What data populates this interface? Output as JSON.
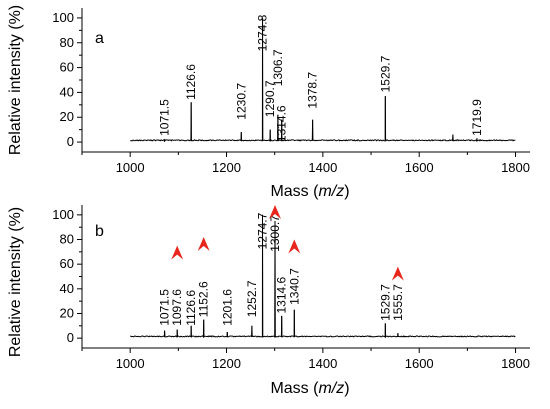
{
  "chart_data": [
    {
      "type": "line",
      "panel": "a",
      "xlabel_prefix": "Mass (",
      "xlabel_italic": "m/z",
      "xlabel_suffix": ")",
      "ylabel": "Relative intensity (%)",
      "xlim": [
        900,
        1830
      ],
      "ylim": [
        -8,
        108
      ],
      "xticks": [
        1000,
        1200,
        1400,
        1600,
        1800
      ],
      "yticks": [
        0,
        20,
        40,
        60,
        80,
        100
      ],
      "baseline": 1,
      "peaks": [
        {
          "x": 1071.5,
          "y": 2
        },
        {
          "x": 1126.6,
          "y": 32
        },
        {
          "x": 1230.7,
          "y": 8
        },
        {
          "x": 1274.8,
          "y": 100
        },
        {
          "x": 1290.7,
          "y": 10
        },
        {
          "x": 1306.7,
          "y": 22
        },
        {
          "x": 1314.6,
          "y": 18
        },
        {
          "x": 1378.7,
          "y": 18
        },
        {
          "x": 1529.7,
          "y": 37
        },
        {
          "x": 1670,
          "y": 6
        },
        {
          "x": 1719.9,
          "y": 3
        }
      ],
      "annotations": [
        {
          "text": "1071.5",
          "x": 1071.5,
          "y": 5
        },
        {
          "text": "1126.6",
          "x": 1126.6,
          "y": 34
        },
        {
          "text": "1230.7",
          "x": 1230.7,
          "y": 18
        },
        {
          "text": "1274.8",
          "x": 1274.8,
          "y": 73
        },
        {
          "text": "1290.7",
          "x": 1290.7,
          "y": 20
        },
        {
          "text": "1306.7",
          "x": 1306.7,
          "y": 45
        },
        {
          "text": "1314.6",
          "x": 1314.6,
          "y": 0
        },
        {
          "text": "1378.7",
          "x": 1378.7,
          "y": 27
        },
        {
          "text": "1529.7",
          "x": 1529.7,
          "y": 40
        },
        {
          "text": "1719.9",
          "x": 1719.9,
          "y": 5
        }
      ]
    },
    {
      "type": "line",
      "panel": "b",
      "xlabel_prefix": "Mass (",
      "xlabel_italic": "m/z",
      "xlabel_suffix": ")",
      "ylabel": "Relative intensity (%)",
      "xlim": [
        900,
        1830
      ],
      "ylim": [
        -8,
        108
      ],
      "xticks": [
        1000,
        1200,
        1400,
        1600,
        1800
      ],
      "yticks": [
        0,
        20,
        40,
        60,
        80,
        100
      ],
      "baseline": 1,
      "peaks": [
        {
          "x": 1071.5,
          "y": 6
        },
        {
          "x": 1097.6,
          "y": 7
        },
        {
          "x": 1126.6,
          "y": 10
        },
        {
          "x": 1152.6,
          "y": 15
        },
        {
          "x": 1201.6,
          "y": 5
        },
        {
          "x": 1252.7,
          "y": 10
        },
        {
          "x": 1274.7,
          "y": 100
        },
        {
          "x": 1300.7,
          "y": 95
        },
        {
          "x": 1314.6,
          "y": 18
        },
        {
          "x": 1340.7,
          "y": 23
        },
        {
          "x": 1529.7,
          "y": 12
        },
        {
          "x": 1555.7,
          "y": 4
        }
      ],
      "annotations": [
        {
          "text": "1071.5",
          "x": 1071.5,
          "y": 10
        },
        {
          "text": "1097.6",
          "x": 1097.6,
          "y": 10
        },
        {
          "text": "1126.6",
          "x": 1126.6,
          "y": 10
        },
        {
          "text": "1152.6",
          "x": 1152.6,
          "y": 17
        },
        {
          "text": "1201.6",
          "x": 1201.6,
          "y": 10
        },
        {
          "text": "1252.7",
          "x": 1252.7,
          "y": 17
        },
        {
          "text": "1274.7",
          "x": 1274.7,
          "y": 72
        },
        {
          "text": "1300.7",
          "x": 1300.7,
          "y": 70
        },
        {
          "text": "1314.6",
          "x": 1314.6,
          "y": 20
        },
        {
          "text": "1340.7",
          "x": 1340.7,
          "y": 27
        },
        {
          "text": "1529.7",
          "x": 1529.7,
          "y": 14
        },
        {
          "text": "1555.7",
          "x": 1555.7,
          "y": 14
        }
      ],
      "arrows": [
        {
          "x": 1097.6,
          "y": 75
        },
        {
          "x": 1152.6,
          "y": 82
        },
        {
          "x": 1300.7,
          "y": 108
        },
        {
          "x": 1340.7,
          "y": 80
        },
        {
          "x": 1555.7,
          "y": 58
        }
      ]
    }
  ]
}
